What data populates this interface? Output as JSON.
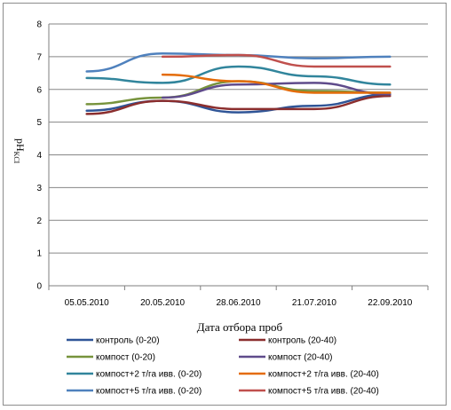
{
  "chart_data": {
    "type": "line",
    "title": "",
    "xlabel": "Дата отбора проб",
    "ylabel": "pH",
    "ylabel_subscript": "KCl",
    "ylim": [
      0,
      8
    ],
    "yticks": [
      "0",
      "1",
      "2",
      "3",
      "4",
      "5",
      "6",
      "7",
      "8"
    ],
    "grid": true,
    "legend_position": "bottom",
    "categories": [
      "05.05.2010",
      "20.05.2010",
      "28.06.2010",
      "21.07.2010",
      "22.09.2010"
    ],
    "series": [
      {
        "name": "контроль (0-20)",
        "color": "#2f5597",
        "values": [
          5.35,
          5.65,
          5.3,
          5.5,
          5.85
        ]
      },
      {
        "name": "контроль (20-40)",
        "color": "#8b2e2e",
        "values": [
          5.25,
          5.65,
          5.4,
          5.4,
          5.8
        ]
      },
      {
        "name": "компост (0-20)",
        "color": "#77933c",
        "values": [
          5.55,
          5.75,
          6.25,
          5.95,
          5.9
        ]
      },
      {
        "name": "компост (20-40)",
        "color": "#5f4b8b",
        "values": [
          null,
          5.75,
          6.15,
          6.2,
          5.85
        ]
      },
      {
        "name": "компост+2 т/га ивв. (0-20)",
        "color": "#31859c",
        "values": [
          6.35,
          6.2,
          6.7,
          6.4,
          6.15
        ]
      },
      {
        "name": "компост+2 т/га ивв. (20-40)",
        "color": "#e46c0a",
        "values": [
          null,
          6.45,
          6.25,
          5.9,
          5.9
        ]
      },
      {
        "name": "компост+5 т/га ивв. (0-20)",
        "color": "#4f81bd",
        "values": [
          6.55,
          7.1,
          7.05,
          6.95,
          7.0
        ]
      },
      {
        "name": "компост+5 т/га ивв. (20-40)",
        "color": "#c0504d",
        "values": [
          null,
          7.0,
          7.05,
          6.7,
          6.7
        ]
      }
    ]
  }
}
